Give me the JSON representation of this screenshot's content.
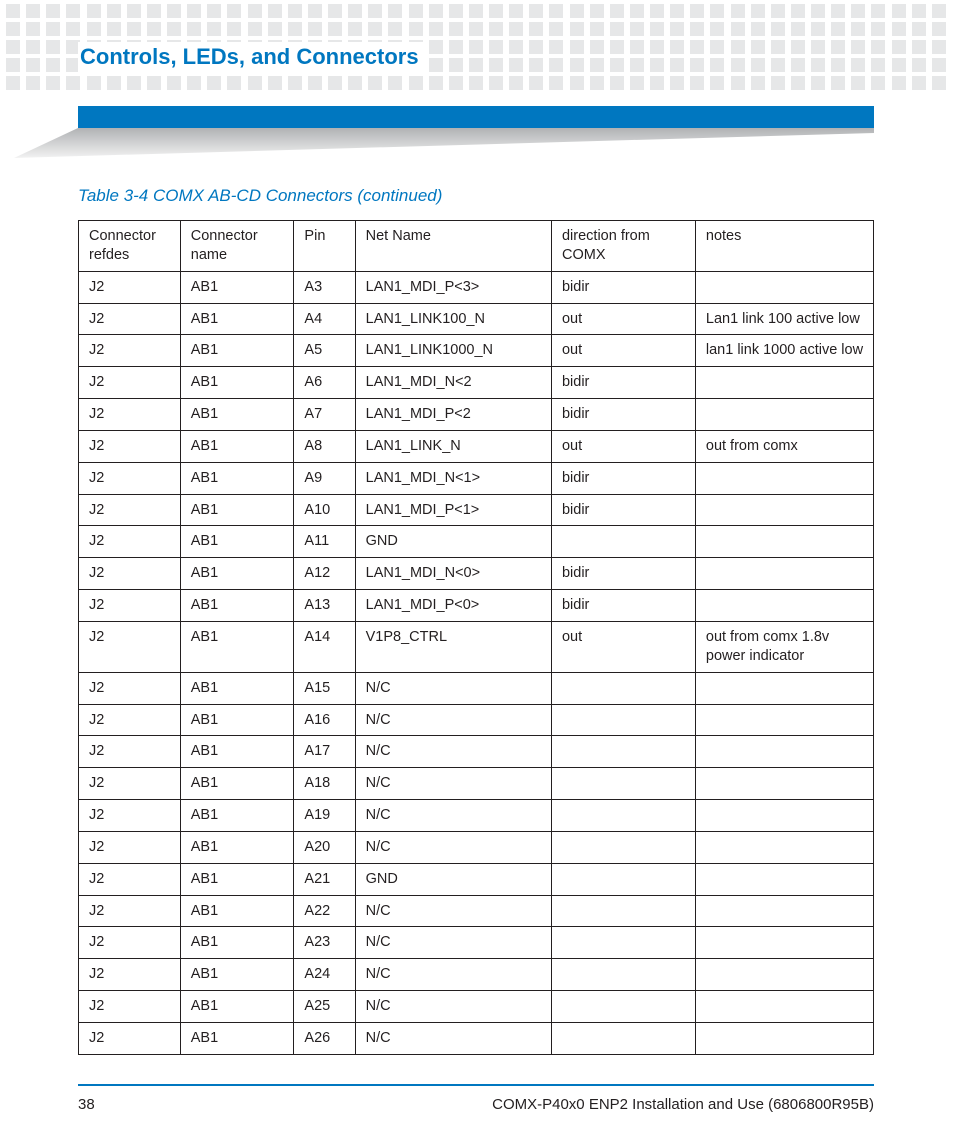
{
  "colors": {
    "accent": "#0077c0",
    "dot": "#e6e7e8",
    "text": "#231f20",
    "table_border": "#231f20",
    "background": "#ffffff",
    "wedge_top": "#b0b2b4",
    "wedge_bottom": "#e6e7e8"
  },
  "section_title": "Controls, LEDs, and Connectors",
  "table_caption": "Table 3-4 COMX AB-CD Connectors (continued)",
  "table": {
    "col_widths_pct": [
      12.8,
      14.3,
      7.7,
      24.7,
      18.1,
      22.4
    ],
    "columns": [
      "Connector refdes",
      "Connector name",
      "Pin",
      "Net Name",
      "direction from COMX",
      "notes"
    ],
    "rows": [
      [
        "J2",
        "AB1",
        "A3",
        "LAN1_MDI_P<3>",
        "bidir",
        ""
      ],
      [
        "J2",
        "AB1",
        "A4",
        "LAN1_LINK100_N",
        "out",
        "Lan1 link 100 active low"
      ],
      [
        "J2",
        "AB1",
        "A5",
        "LAN1_LINK1000_N",
        "out",
        "lan1 link 1000 active low"
      ],
      [
        "J2",
        "AB1",
        "A6",
        "LAN1_MDI_N<2",
        "bidir",
        ""
      ],
      [
        "J2",
        "AB1",
        "A7",
        "LAN1_MDI_P<2",
        "bidir",
        ""
      ],
      [
        "J2",
        "AB1",
        "A8",
        "LAN1_LINK_N",
        "out",
        "out from comx"
      ],
      [
        "J2",
        "AB1",
        "A9",
        "LAN1_MDI_N<1>",
        "bidir",
        ""
      ],
      [
        "J2",
        "AB1",
        "A10",
        "LAN1_MDI_P<1>",
        "bidir",
        ""
      ],
      [
        "J2",
        "AB1",
        "A11",
        "GND",
        "",
        ""
      ],
      [
        "J2",
        "AB1",
        "A12",
        "LAN1_MDI_N<0>",
        "bidir",
        ""
      ],
      [
        "J2",
        "AB1",
        "A13",
        "LAN1_MDI_P<0>",
        "bidir",
        ""
      ],
      [
        "J2",
        "AB1",
        "A14",
        "V1P8_CTRL",
        "out",
        "out from comx 1.8v power indicator"
      ],
      [
        "J2",
        "AB1",
        "A15",
        "N/C",
        "",
        ""
      ],
      [
        "J2",
        "AB1",
        "A16",
        "N/C",
        "",
        ""
      ],
      [
        "J2",
        "AB1",
        "A17",
        "N/C",
        "",
        ""
      ],
      [
        "J2",
        "AB1",
        "A18",
        "N/C",
        "",
        ""
      ],
      [
        "J2",
        "AB1",
        "A19",
        "N/C",
        "",
        ""
      ],
      [
        "J2",
        "AB1",
        "A20",
        "N/C",
        "",
        ""
      ],
      [
        "J2",
        "AB1",
        "A21",
        "GND",
        "",
        ""
      ],
      [
        "J2",
        "AB1",
        "A22",
        "N/C",
        "",
        ""
      ],
      [
        "J2",
        "AB1",
        "A23",
        "N/C",
        "",
        ""
      ],
      [
        "J2",
        "AB1",
        "A24",
        "N/C",
        "",
        ""
      ],
      [
        "J2",
        "AB1",
        "A25",
        "N/C",
        "",
        ""
      ],
      [
        "J2",
        "AB1",
        "A26",
        "N/C",
        "",
        ""
      ]
    ]
  },
  "footer": {
    "page_number": "38",
    "doc_title": "COMX-P40x0 ENP2 Installation and Use (6806800R95B)"
  },
  "dot_grid": {
    "rows": 5,
    "cols": 47
  }
}
